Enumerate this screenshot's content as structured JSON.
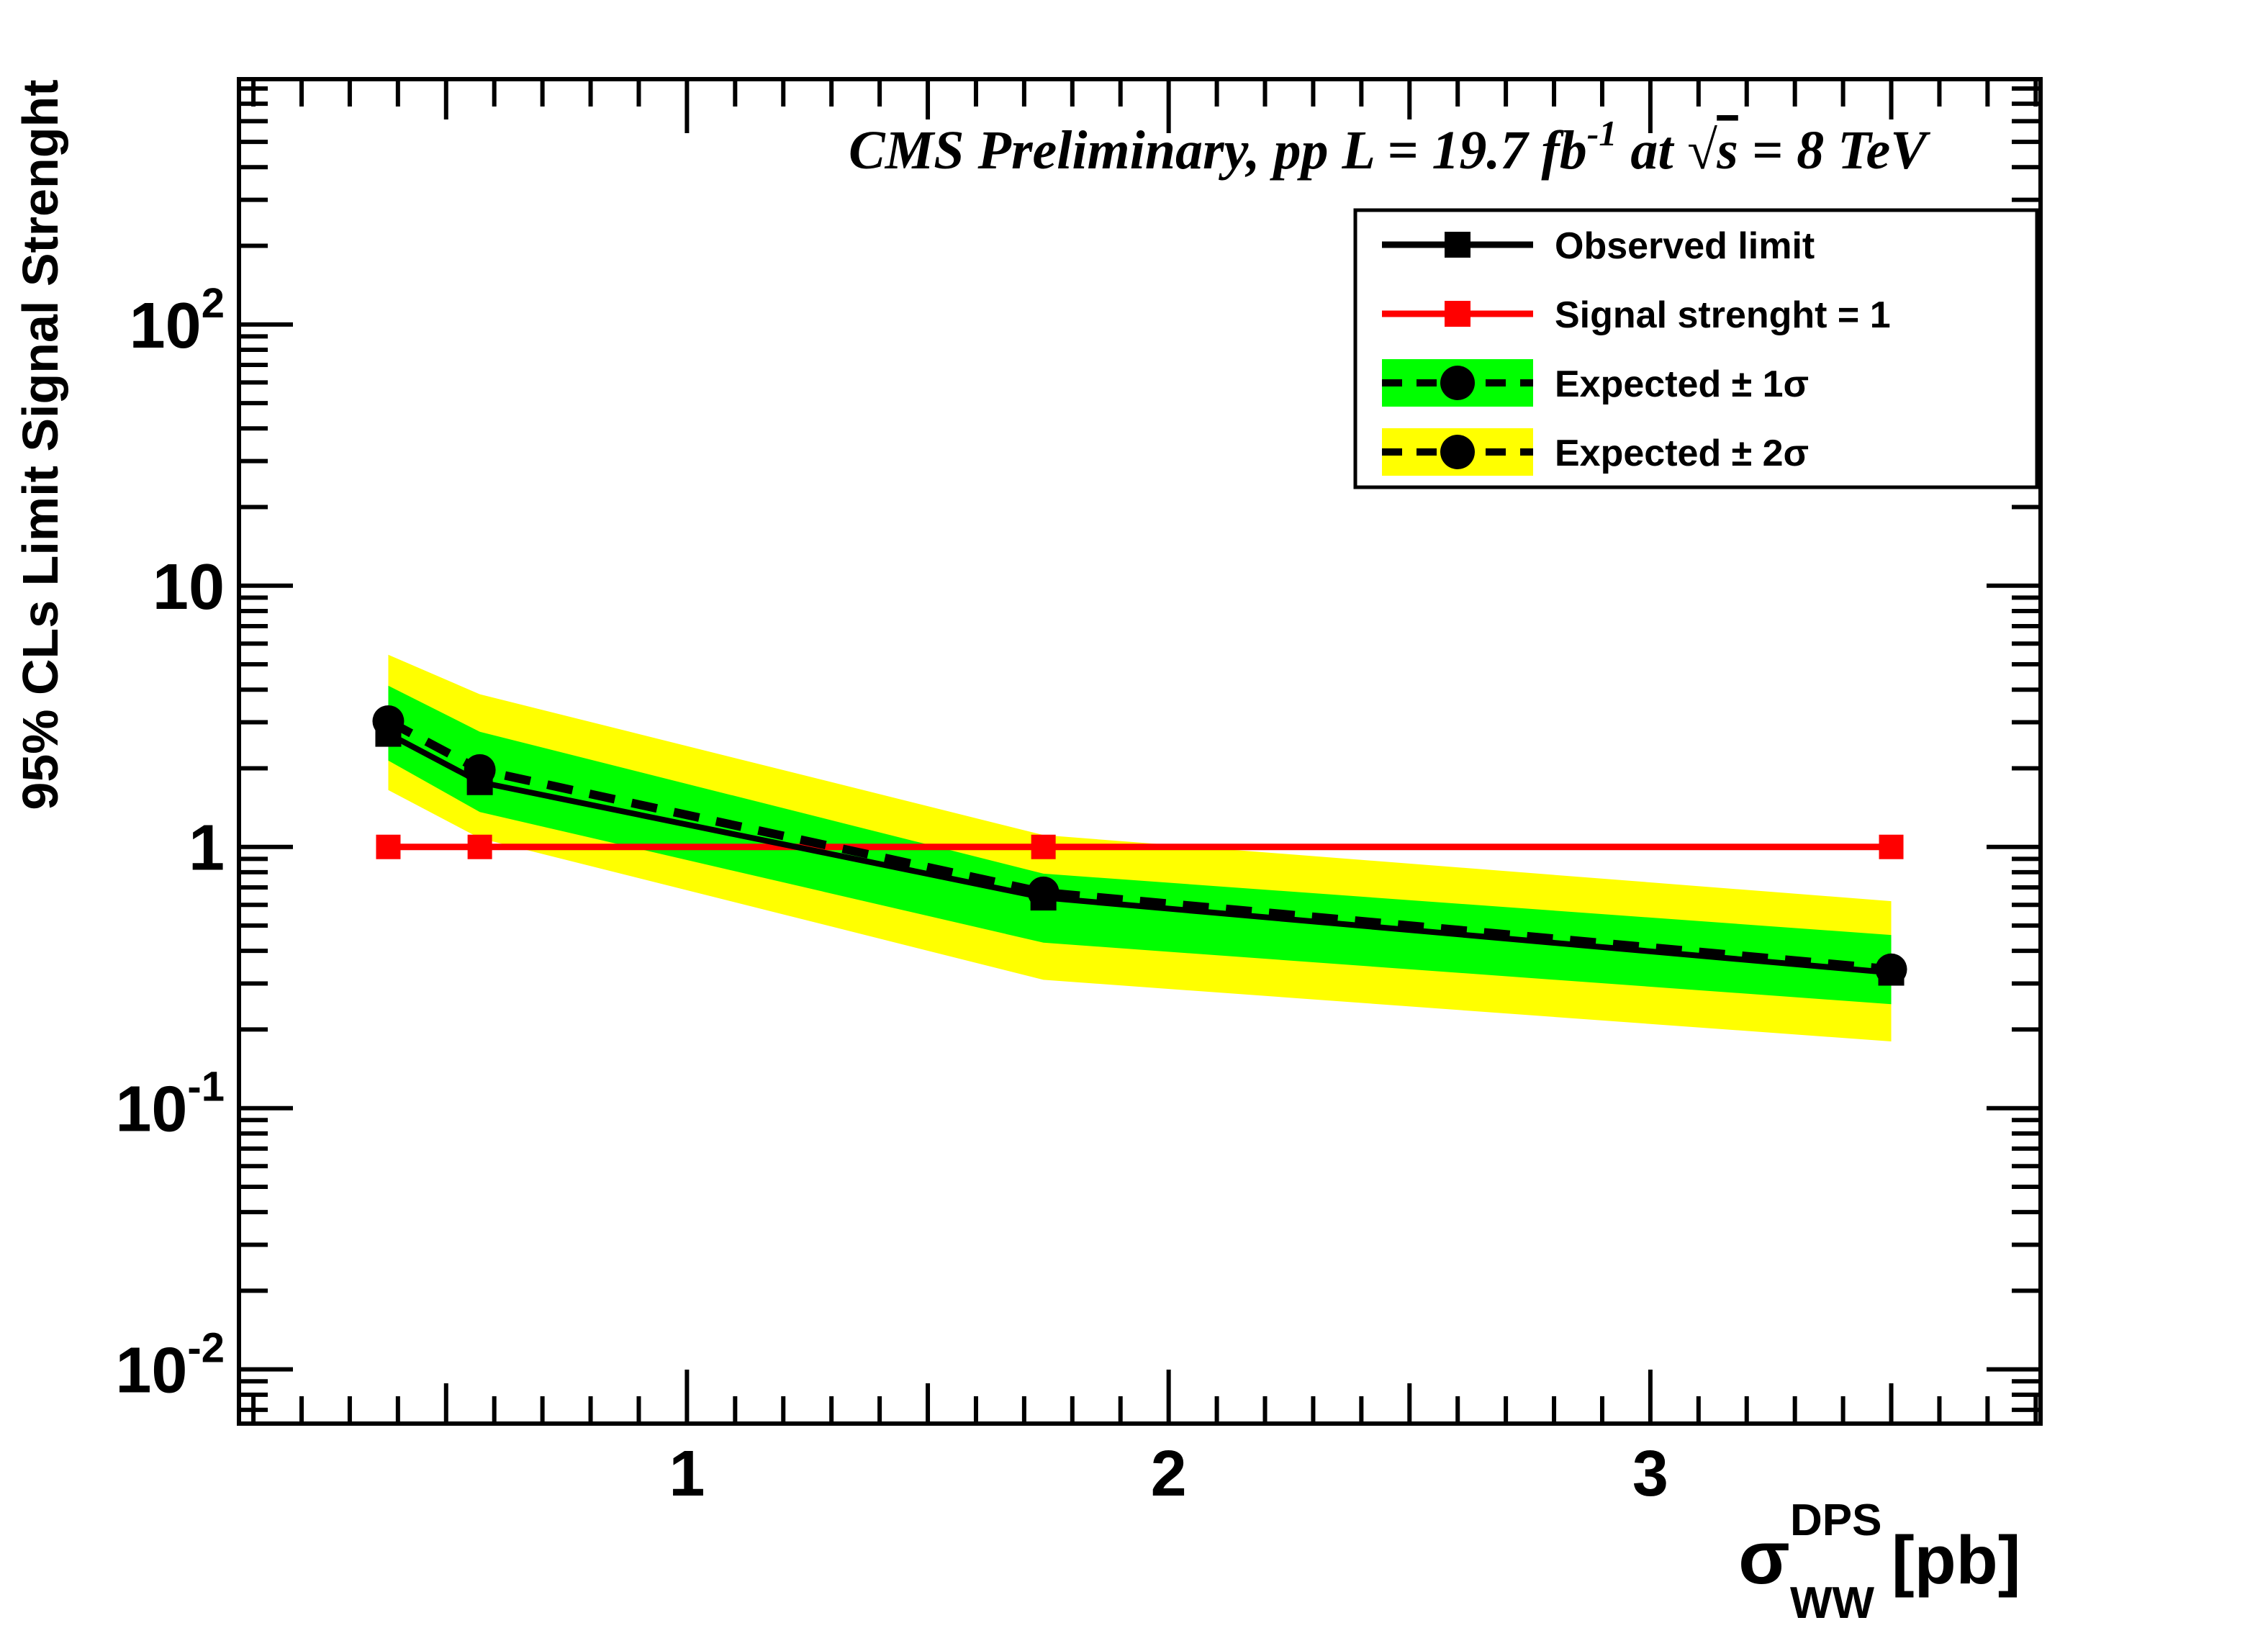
{
  "header": {
    "title_pre": "CMS Preliminary, pp L = 19.7 fb",
    "title_sup": "-1",
    "title_mid": " at  ",
    "title_sqrt": "√",
    "title_sqrt_arg": "s",
    "title_post": " = 8 TeV"
  },
  "axes": {
    "y_title": "95% CLs Limit Signal Strenght",
    "x_title": {
      "sigma": "σ",
      "sup": "DPS",
      "sub": "WW",
      "unit": " [pb]"
    },
    "x_tick_labels": [
      "1",
      "2",
      "3"
    ],
    "y_tick_labels": [
      {
        "base": "10",
        "exp": "2"
      },
      {
        "base": "10",
        "exp": ""
      },
      {
        "base": "1",
        "exp": ""
      },
      {
        "base": "10",
        "exp": "-1"
      },
      {
        "base": "10",
        "exp": "-2"
      }
    ]
  },
  "legend": {
    "items": [
      {
        "label": "Observed limit",
        "type": "line-square",
        "color": "#000000"
      },
      {
        "label": "Signal strenght = 1",
        "type": "line-square",
        "color": "#ff0000"
      },
      {
        "label": "Expected ± 1σ",
        "type": "band-circle",
        "color": "#00ff00"
      },
      {
        "label": "Expected ± 2σ",
        "type": "band-circle",
        "color": "#ffff00"
      }
    ]
  },
  "colors": {
    "observed": "#000000",
    "signal": "#ff0000",
    "band_1sigma": "#00ff00",
    "band_2sigma": "#ffff00",
    "frame": "#000000",
    "background": "#ffffff"
  },
  "chart_data": {
    "type": "line",
    "title": "CMS Preliminary, pp L = 19.7 fb-1 at √s = 8 TeV",
    "xlabel": "σ_WW^DPS [pb]",
    "ylabel": "95% CLs Limit Signal Strenght",
    "x_scale": "linear",
    "y_scale": "log",
    "xlim": [
      0.07,
      3.81
    ],
    "ylim": [
      0.0062,
      869
    ],
    "grid": false,
    "legend_position": "top-right",
    "x_major_ticks": [
      1,
      2,
      3
    ],
    "x_medium_ticks": [
      0.5,
      1.5,
      2.5,
      3.5
    ],
    "x_minor_step": 0.1,
    "y_major_ticks": [
      100,
      10,
      1,
      0.1,
      0.01
    ],
    "x": [
      0.38,
      0.57,
      1.74,
      3.5
    ],
    "series": [
      {
        "name": "Observed limit",
        "values": [
          2.71,
          1.77,
          0.64,
          0.33
        ],
        "color": "#000000",
        "line": "solid",
        "marker": "square"
      },
      {
        "name": "Signal strenght = 1",
        "values": [
          1.0,
          1.0,
          1.0,
          1.0
        ],
        "color": "#ff0000",
        "line": "solid",
        "marker": "square"
      },
      {
        "name": "Expected",
        "values": [
          3.03,
          1.97,
          0.67,
          0.34
        ],
        "color": "#000000",
        "line": "dashed",
        "marker": "circle"
      }
    ],
    "bands": [
      {
        "name": "Expected ± 2σ",
        "color": "#ffff00",
        "upper": [
          5.44,
          3.84,
          1.11,
          0.62
        ],
        "lower": [
          1.65,
          1.08,
          0.31,
          0.18
        ]
      },
      {
        "name": "Expected ± 1σ",
        "color": "#00ff00",
        "upper": [
          4.14,
          2.76,
          0.79,
          0.46
        ],
        "lower": [
          2.14,
          1.36,
          0.43,
          0.25
        ]
      }
    ]
  }
}
